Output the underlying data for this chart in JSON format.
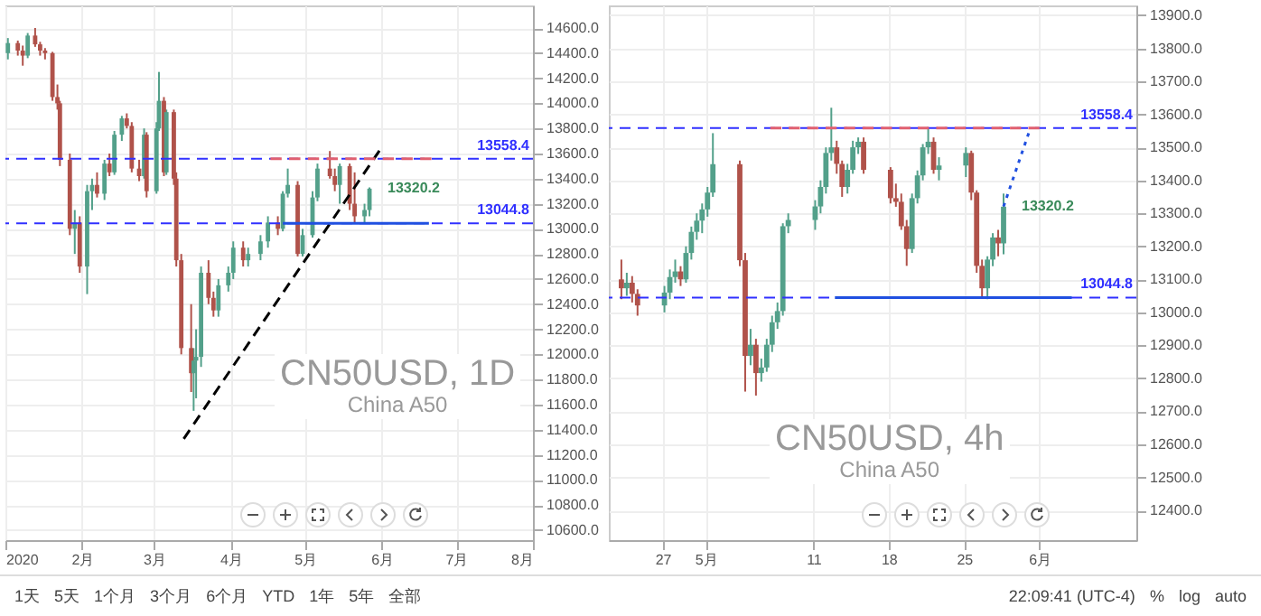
{
  "chart_data": [
    {
      "type": "candlestick",
      "title": "CN50USD, 1D",
      "subtitle": "China A50",
      "grid": true,
      "x": [
        "2020-01-02",
        "2020-01-06",
        "2020-01-08",
        "2020-01-10",
        "2020-01-13",
        "2020-01-15",
        "2020-01-17",
        "2020-01-20",
        "2020-01-22",
        "2020-01-23",
        "2020-01-27",
        "2020-01-29",
        "2020-01-31",
        "2020-02-03",
        "2020-02-05",
        "2020-02-07",
        "2020-02-10",
        "2020-02-12",
        "2020-02-14",
        "2020-02-17",
        "2020-02-19",
        "2020-02-21",
        "2020-02-24",
        "2020-02-26",
        "2020-02-27",
        "2020-03-02",
        "2020-03-03",
        "2020-03-05",
        "2020-03-06",
        "2020-03-09",
        "2020-03-10",
        "2020-03-12",
        "2020-03-16",
        "2020-03-17",
        "2020-03-18",
        "2020-03-20",
        "2020-03-23",
        "2020-03-25",
        "2020-03-27",
        "2020-03-31",
        "2020-04-02",
        "2020-04-06",
        "2020-04-08",
        "2020-04-13",
        "2020-04-16",
        "2020-04-20",
        "2020-04-22",
        "2020-04-24",
        "2020-04-28",
        "2020-04-30",
        "2020-05-04",
        "2020-05-06",
        "2020-05-11",
        "2020-05-13",
        "2020-05-15",
        "2020-05-19",
        "2020-05-21",
        "2020-05-25",
        "2020-05-27"
      ],
      "ohlc": [
        [
          14400,
          14520,
          14350,
          14480
        ],
        [
          14480,
          14500,
          14380,
          14420
        ],
        [
          14420,
          14460,
          14300,
          14380
        ],
        [
          14380,
          14560,
          14360,
          14540
        ],
        [
          14540,
          14600,
          14450,
          14470
        ],
        [
          14470,
          14490,
          14380,
          14420
        ],
        [
          14420,
          14440,
          14350,
          14400
        ],
        [
          14400,
          14410,
          14020,
          14050
        ],
        [
          14050,
          14150,
          13950,
          14000
        ],
        [
          14000,
          14020,
          13500,
          13550
        ],
        [
          13550,
          13600,
          12950,
          13000
        ],
        [
          13000,
          13150,
          12800,
          13050
        ],
        [
          13050,
          13100,
          12650,
          12700
        ],
        [
          12700,
          13350,
          12480,
          13300
        ],
        [
          13300,
          13400,
          13150,
          13350
        ],
        [
          13350,
          13450,
          13250,
          13280
        ],
        [
          13280,
          13550,
          13230,
          13520
        ],
        [
          13520,
          13600,
          13420,
          13450
        ],
        [
          13450,
          13780,
          13430,
          13750
        ],
        [
          13750,
          13900,
          13700,
          13880
        ],
        [
          13880,
          13920,
          13800,
          13820
        ],
        [
          13820,
          13850,
          13450,
          13480
        ],
        [
          13480,
          13550,
          13380,
          13420
        ],
        [
          13420,
          13800,
          13400,
          13750
        ],
        [
          13750,
          13770,
          13250,
          13300
        ],
        [
          13300,
          13850,
          13280,
          13800
        ],
        [
          13800,
          14250,
          13780,
          14020
        ],
        [
          14020,
          14050,
          13420,
          13450
        ],
        [
          13450,
          13950,
          13430,
          13930
        ],
        [
          13930,
          13950,
          13350,
          13400
        ],
        [
          13400,
          13450,
          12700,
          12750
        ],
        [
          12750,
          12800,
          12000,
          12050
        ],
        [
          12050,
          12400,
          11700,
          11850
        ],
        [
          11850,
          12050,
          11550,
          11950
        ],
        [
          11950,
          12200,
          11650,
          11980
        ],
        [
          11980,
          12700,
          11900,
          12650
        ],
        [
          12650,
          12750,
          12400,
          12450
        ],
        [
          12450,
          12500,
          12300,
          12350
        ],
        [
          12350,
          12600,
          12300,
          12550
        ],
        [
          12550,
          12700,
          12500,
          12650
        ],
        [
          12650,
          12900,
          12600,
          12850
        ],
        [
          12850,
          12900,
          12700,
          12750
        ],
        [
          12750,
          12850,
          12700,
          12800
        ],
        [
          12800,
          12950,
          12750,
          12900
        ],
        [
          12900,
          13100,
          12850,
          13050
        ],
        [
          13050,
          13100,
          12950,
          13000
        ],
        [
          13000,
          13300,
          12980,
          13280
        ],
        [
          13280,
          13480,
          13250,
          13350
        ],
        [
          13350,
          13380,
          12780,
          12800
        ],
        [
          12800,
          13000,
          12780,
          12950
        ],
        [
          12950,
          13300,
          12930,
          13250
        ],
        [
          13250,
          13520,
          13220,
          13480
        ],
        [
          13480,
          13620,
          13400,
          13420
        ],
        [
          13420,
          13480,
          13300,
          13350
        ],
        [
          13350,
          13520,
          13200,
          13500
        ],
        [
          13500,
          13520,
          13150,
          13200
        ],
        [
          13200,
          13450,
          13050,
          13100
        ],
        [
          13100,
          13200,
          13050,
          13150
        ],
        [
          13150,
          13330,
          13100,
          13320.2
        ]
      ],
      "series": [
        {
          "type": "line",
          "color": "#000000",
          "line_style": "dashed",
          "x": [
            "2020-03-13",
            "2020-05-31"
          ],
          "values": [
            11327,
            13622
          ]
        },
        {
          "type": "line",
          "color": "#e06070",
          "line_style": "dashed",
          "x": [
            "2020-04-17",
            "2020-06-21"
          ],
          "values": [
            13558.4,
            13558.4
          ]
        },
        {
          "type": "line",
          "color": "#2050e0",
          "line_style": "solid",
          "x": [
            "2020-04-22",
            "2020-06-20"
          ],
          "values": [
            13044.8,
            13044.8
          ]
        }
      ],
      "ref_lines": [
        {
          "axis": "y",
          "value": 13558.4,
          "label": "13558.4",
          "color": "#3030ff",
          "line_style": "dashed"
        },
        {
          "axis": "y",
          "value": 13044.8,
          "label": "13044.8",
          "color": "#3030ff",
          "line_style": "dashed"
        }
      ],
      "annotations": [
        {
          "text": "13320.2",
          "x": "2020-05-27",
          "y": 13320.2
        },
        "1天",
        "5天",
        "1个月",
        "3个月",
        "6个月",
        "YTD",
        "1年",
        "5年",
        "全部"
      ],
      "xlim": [
        "2020-01-01",
        "2020-08-01"
      ],
      "xticks": [
        {
          "value": "2020-01-01",
          "label": "2020"
        },
        {
          "value": "2020-02-01",
          "label": "2月"
        },
        {
          "value": "2020-03-01",
          "label": "3月"
        },
        {
          "value": "2020-04-01",
          "label": "4月"
        },
        {
          "value": "2020-05-01",
          "label": "5月"
        },
        {
          "value": "2020-06-01",
          "label": "6月"
        },
        {
          "value": "2020-07-01",
          "label": "7月"
        },
        {
          "value": "2020-08-01",
          "label": "8月"
        }
      ],
      "ylim": [
        10520,
        14780
      ],
      "yticks": [
        {
          "value": 10600,
          "label": "10600.0"
        },
        {
          "value": 10800,
          "label": "10800.0"
        },
        {
          "value": 11000,
          "label": "11000.0"
        },
        {
          "value": 11200,
          "label": "11200.0"
        },
        {
          "value": 11400,
          "label": "11400.0"
        },
        {
          "value": 11600,
          "label": "11600.0"
        },
        {
          "value": 11800,
          "label": "11800.0"
        },
        {
          "value": 12000,
          "label": "12000.0"
        },
        {
          "value": 12200,
          "label": "12200.0"
        },
        {
          "value": 12400,
          "label": "12400.0"
        },
        {
          "value": 12600,
          "label": "12600.0"
        },
        {
          "value": 12800,
          "label": "12800.0"
        },
        {
          "value": 13000,
          "label": "13000.0"
        },
        {
          "value": 13200,
          "label": "13200.0"
        },
        {
          "value": 13400,
          "label": "13400.0"
        },
        {
          "value": 13600,
          "label": "13600.0"
        },
        {
          "value": 13800,
          "label": "13800.0"
        },
        {
          "value": 14000,
          "label": "14000.0"
        },
        {
          "value": 14200,
          "label": "14200.0"
        },
        {
          "value": 14400,
          "label": "14400.0"
        },
        {
          "value": 14600,
          "label": "14600.0"
        }
      ]
    },
    {
      "type": "candlestick",
      "title": "CN50USD, 4h",
      "subtitle": "China A50",
      "grid": true,
      "x": [
        "2020-04-23T04:00",
        "2020-04-23T16:00",
        "2020-04-24T04:00",
        "2020-04-24T16:00",
        "2020-04-27T04:00",
        "2020-04-27T16:00",
        "2020-04-28T04:00",
        "2020-04-28T16:00",
        "2020-04-29T04:00",
        "2020-04-29T16:00",
        "2020-04-30T04:00",
        "2020-04-30T16:00",
        "2020-05-01T04:00",
        "2020-05-01T16:00",
        "2020-05-04T04:00",
        "2020-05-04T16:00",
        "2020-05-05T04:00",
        "2020-05-05T16:00",
        "2020-05-06T04:00",
        "2020-05-06T16:00",
        "2020-05-07T04:00",
        "2020-05-07T16:00",
        "2020-05-08T04:00",
        "2020-05-08T16:00",
        "2020-05-11T04:00",
        "2020-05-11T16:00",
        "2020-05-12T04:00",
        "2020-05-12T16:00",
        "2020-05-13T04:00",
        "2020-05-13T16:00",
        "2020-05-14T04:00",
        "2020-05-14T16:00",
        "2020-05-15T04:00",
        "2020-05-15T16:00",
        "2020-05-18T04:00",
        "2020-05-18T16:00",
        "2020-05-19T04:00",
        "2020-05-19T16:00",
        "2020-05-20T04:00",
        "2020-05-20T16:00",
        "2020-05-21T04:00",
        "2020-05-21T16:00",
        "2020-05-22T04:00",
        "2020-05-22T16:00",
        "2020-05-25T04:00",
        "2020-05-25T16:00",
        "2020-05-26T04:00",
        "2020-05-26T16:00",
        "2020-05-27T04:00",
        "2020-05-27T16:00",
        "2020-05-28T04:00",
        "2020-05-28T16:00"
      ],
      "ohlc": [
        [
          13100,
          13160,
          13040,
          13073
        ],
        [
          13073,
          13120,
          13050,
          13090
        ],
        [
          13090,
          13110,
          13030,
          13056
        ],
        [
          13056,
          13070,
          12990,
          13021
        ],
        [
          13021,
          13080,
          13000,
          13060
        ],
        [
          13060,
          13130,
          13040,
          13107
        ],
        [
          13107,
          13160,
          13090,
          13124
        ],
        [
          13124,
          13140,
          13080,
          13100
        ],
        [
          13100,
          13200,
          13090,
          13180
        ],
        [
          13180,
          13260,
          13160,
          13244
        ],
        [
          13244,
          13300,
          13220,
          13278
        ],
        [
          13278,
          13330,
          13240,
          13312
        ],
        [
          13312,
          13380,
          13290,
          13363
        ],
        [
          13363,
          13543,
          13350,
          13449
        ],
        [
          13449,
          13460,
          13140,
          13158
        ],
        [
          13158,
          13180,
          12760,
          12868
        ],
        [
          12868,
          12950,
          12840,
          12902
        ],
        [
          12902,
          12920,
          12748,
          12816
        ],
        [
          12816,
          12860,
          12790,
          12833
        ],
        [
          12833,
          12920,
          12820,
          12902
        ],
        [
          12902,
          12990,
          12880,
          12970
        ],
        [
          12970,
          13030,
          12950,
          13004
        ],
        [
          13004,
          13270,
          12990,
          13261
        ],
        [
          13261,
          13300,
          13240,
          13280
        ],
        [
          13280,
          13340,
          13250,
          13321
        ],
        [
          13321,
          13400,
          13300,
          13380
        ],
        [
          13380,
          13500,
          13360,
          13483
        ],
        [
          13483,
          13620,
          13460,
          13500
        ],
        [
          13500,
          13520,
          13420,
          13450
        ],
        [
          13450,
          13460,
          13350,
          13380
        ],
        [
          13380,
          13450,
          13360,
          13432
        ],
        [
          13432,
          13520,
          13420,
          13500
        ],
        [
          13500,
          13530,
          13480,
          13517
        ],
        [
          13517,
          13530,
          13420,
          13432
        ],
        [
          13432,
          13440,
          13330,
          13346
        ],
        [
          13346,
          13390,
          13320,
          13335
        ],
        [
          13335,
          13360,
          13250,
          13261
        ],
        [
          13261,
          13280,
          13141,
          13192
        ],
        [
          13192,
          13360,
          13180,
          13346
        ],
        [
          13346,
          13430,
          13330,
          13415
        ],
        [
          13415,
          13510,
          13400,
          13500
        ],
        [
          13500,
          13560,
          13480,
          13517
        ],
        [
          13517,
          13530,
          13420,
          13432
        ],
        [
          13432,
          13470,
          13400,
          13445
        ],
        [
          13445,
          13500,
          13410,
          13483
        ],
        [
          13483,
          13490,
          13340,
          13363
        ],
        [
          13363,
          13370,
          13120,
          13141
        ],
        [
          13141,
          13160,
          13045,
          13073
        ],
        [
          13073,
          13170,
          13040,
          13160
        ],
        [
          13160,
          13240,
          13140,
          13227
        ],
        [
          13227,
          13250,
          13170,
          13209
        ],
        [
          13209,
          13360,
          13176,
          13320.2
        ]
      ],
      "series": [
        {
          "type": "line",
          "color": "#e06070",
          "line_style": "dashed",
          "x": [
            "2020-05-07",
            "2020-06-01"
          ],
          "values": [
            13558.4,
            13558.4
          ]
        },
        {
          "type": "line",
          "color": "#2050e0",
          "line_style": "solid",
          "x": [
            "2020-05-13",
            "2020-06-04"
          ],
          "values": [
            13044.8,
            13044.8
          ]
        },
        {
          "type": "line",
          "color": "#2050e0",
          "line_style": "dotted",
          "x": [
            "2020-05-28T16:00",
            "2020-05-31"
          ],
          "values": [
            13321,
            13543
          ]
        }
      ],
      "ref_lines": [
        {
          "axis": "y",
          "value": 13558.4,
          "label": "13558.4",
          "color": "#3030ff",
          "line_style": "dashed"
        },
        {
          "axis": "y",
          "value": 13044.8,
          "label": "13044.8",
          "color": "#3030ff",
          "line_style": "dashed"
        }
      ],
      "annotations": [
        {
          "text": "13320.2",
          "x": "2020-05-28T16:00",
          "y": 13320.2
        },
        "22:09:41 (UTC-4)",
        "%",
        "log",
        "auto"
      ],
      "xlim": [
        "2020-04-22",
        "2020-06-10"
      ],
      "xticks": [
        {
          "value": "2020-04-27",
          "label": "27"
        },
        {
          "value": "2020-05-01",
          "label": "5月"
        },
        {
          "value": "2020-05-11",
          "label": "11"
        },
        {
          "value": "2020-05-18",
          "label": "18"
        },
        {
          "value": "2020-05-25",
          "label": "25"
        },
        {
          "value": "2020-06-01",
          "label": "6月"
        }
      ],
      "ylim": [
        12310,
        13930
      ],
      "yticks": [
        {
          "value": 12400,
          "label": "12400.0"
        },
        {
          "value": 12500,
          "label": "12500.0"
        },
        {
          "value": 12600,
          "label": "12600.0"
        },
        {
          "value": 12700,
          "label": "12700.0"
        },
        {
          "value": 12800,
          "label": "12800.0"
        },
        {
          "value": 12900,
          "label": "12900.0"
        },
        {
          "value": 13000,
          "label": "13000.0"
        },
        {
          "value": 13100,
          "label": "13100.0"
        },
        {
          "value": 13200,
          "label": "13200.0"
        },
        {
          "value": 13300,
          "label": "13300.0"
        },
        {
          "value": 13400,
          "label": "13400.0"
        },
        {
          "value": 13500,
          "label": "13500.0"
        },
        {
          "value": 13600,
          "label": "13600.0"
        },
        {
          "value": 13700,
          "label": "13700.0"
        },
        {
          "value": 13800,
          "label": "13800.0"
        },
        {
          "value": 13900,
          "label": "13900.0"
        }
      ]
    }
  ]
}
